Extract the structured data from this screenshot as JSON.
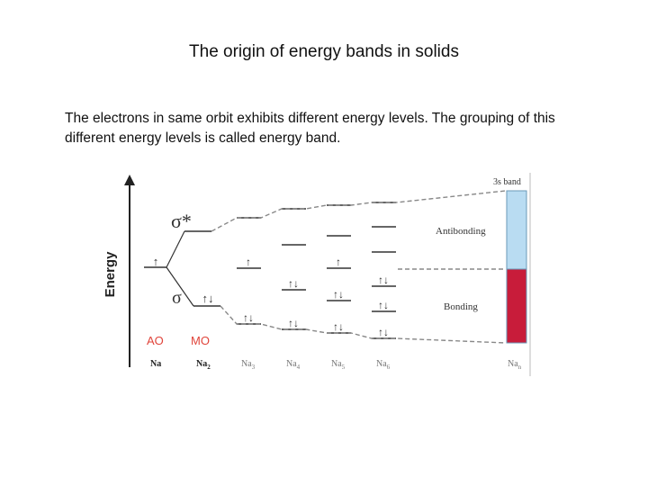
{
  "slide": {
    "title": "The origin of energy bands in solids",
    "body": "The electrons in same orbit exhibits different energy levels. The grouping of this different energy levels is called energy band."
  },
  "diagram": {
    "axis_label": "Energy",
    "sigma_star": "σ*",
    "sigma": "σ",
    "ao_label": "AO",
    "mo_label": "MO",
    "band_label": "3s band",
    "antibonding_label": "Antibonding",
    "bonding_label": "Bonding",
    "species": {
      "na": {
        "base": "Na",
        "sub": ""
      },
      "na2": {
        "base": "Na",
        "sub": "2"
      },
      "na3": {
        "base": "Na",
        "sub": "3"
      },
      "na4": {
        "base": "Na",
        "sub": "4"
      },
      "na5": {
        "base": "Na",
        "sub": "5"
      },
      "na6": {
        "base": "Na",
        "sub": "6"
      },
      "nan": {
        "base": "Na",
        "sub": "n"
      }
    },
    "colors": {
      "antibonding_band": "#b9dcf2",
      "bonding_band": "#c81c3a",
      "band_frame": "#6a9ab8",
      "ao_mo_labels": "#e0443a",
      "lines": "#333333",
      "dashed": "#888888"
    }
  }
}
